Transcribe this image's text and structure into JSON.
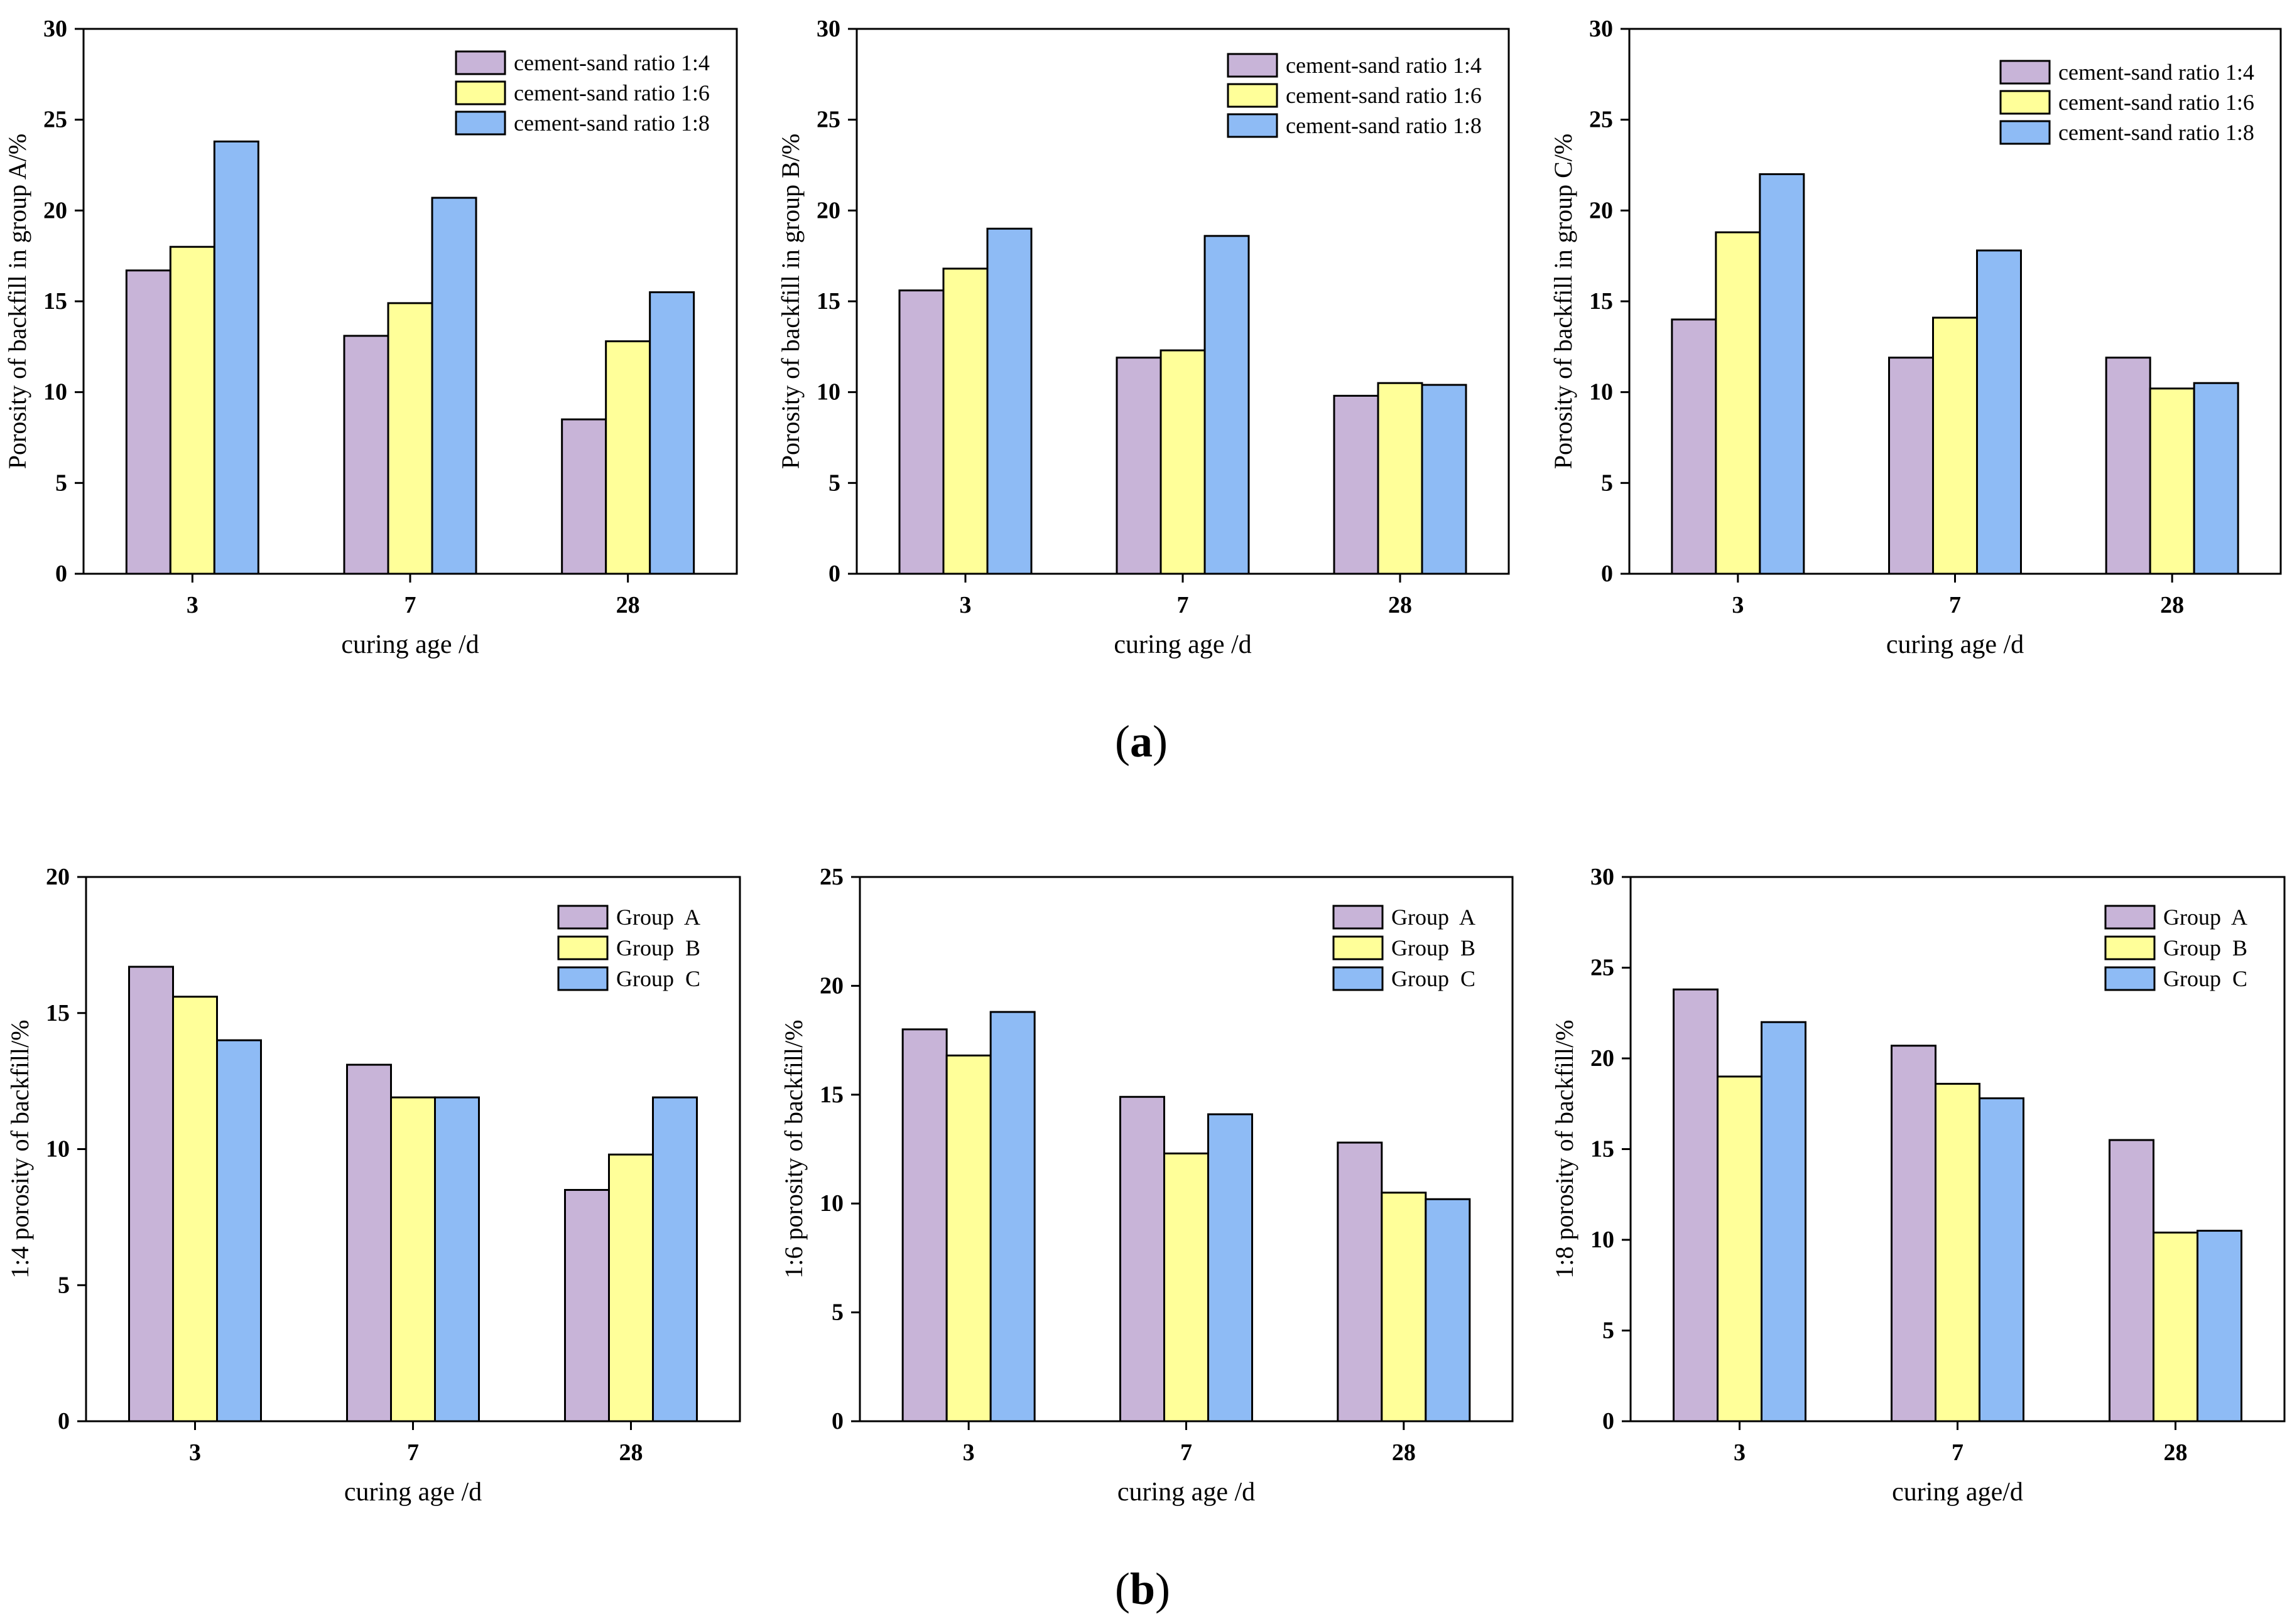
{
  "panel_labels": {
    "a": "a",
    "b": "b"
  },
  "colors": {
    "purple": "#c8b4d8",
    "yellow": "#ffff99",
    "blue": "#8ebbf5"
  },
  "chart_data": [
    {
      "type": "bar",
      "title": "",
      "xlabel": "curing age /d",
      "ylabel": "Porosity of backfill in group A/%",
      "categories": [
        "3",
        "7",
        "28"
      ],
      "ylim": [
        0,
        30
      ],
      "yticks": [
        "0",
        "5",
        "10",
        "15",
        "20",
        "25",
        "30"
      ],
      "series": [
        {
          "name": "cement-sand ratio 1:4",
          "color": "#c8b4d8",
          "values": [
            16.7,
            13.1,
            8.5
          ]
        },
        {
          "name": "cement-sand ratio 1:6",
          "color": "#ffff99",
          "values": [
            18.0,
            14.9,
            12.8
          ]
        },
        {
          "name": "cement-sand ratio 1:8",
          "color": "#8ebbf5",
          "values": [
            23.8,
            20.7,
            15.5
          ]
        }
      ],
      "legend": "top-right",
      "grid": false
    },
    {
      "type": "bar",
      "title": "",
      "xlabel": "curing age /d",
      "ylabel": "Porosity of backfill in group B/%",
      "categories": [
        "3",
        "7",
        "28"
      ],
      "ylim": [
        0,
        30
      ],
      "yticks": [
        "0",
        "5",
        "10",
        "15",
        "20",
        "25",
        "30"
      ],
      "series": [
        {
          "name": "cement-sand ratio 1:4",
          "color": "#c8b4d8",
          "values": [
            15.6,
            11.9,
            9.8
          ]
        },
        {
          "name": "cement-sand ratio 1:6",
          "color": "#ffff99",
          "values": [
            16.8,
            12.3,
            10.5
          ]
        },
        {
          "name": "cement-sand ratio 1:8",
          "color": "#8ebbf5",
          "values": [
            19.0,
            18.6,
            10.4
          ]
        }
      ],
      "legend": "top-right",
      "grid": false
    },
    {
      "type": "bar",
      "title": "",
      "xlabel": "curing age /d",
      "ylabel": "Porosity of backfill in group C/%",
      "categories": [
        "3",
        "7",
        "28"
      ],
      "ylim": [
        0,
        30
      ],
      "yticks": [
        "0",
        "5",
        "10",
        "15",
        "20",
        "25",
        "30"
      ],
      "series": [
        {
          "name": "cement-sand ratio 1:4",
          "color": "#c8b4d8",
          "values": [
            14.0,
            11.9,
            11.9
          ]
        },
        {
          "name": "cement-sand ratio 1:6",
          "color": "#ffff99",
          "values": [
            18.8,
            14.1,
            10.2
          ]
        },
        {
          "name": "cement-sand ratio 1:8",
          "color": "#8ebbf5",
          "values": [
            22.0,
            17.8,
            10.5
          ]
        }
      ],
      "legend": "top-right",
      "grid": false
    },
    {
      "type": "bar",
      "title": "",
      "xlabel": "curing age /d",
      "ylabel": "1:4 porosity of backfill/%",
      "categories": [
        "3",
        "7",
        "28"
      ],
      "ylim": [
        0,
        20
      ],
      "yticks": [
        "0",
        "5",
        "10",
        "15",
        "20"
      ],
      "series": [
        {
          "name": "Group  A",
          "color": "#c8b4d8",
          "values": [
            16.7,
            13.1,
            8.5
          ]
        },
        {
          "name": "Group  B",
          "color": "#ffff99",
          "values": [
            15.6,
            11.9,
            9.8
          ]
        },
        {
          "name": "Group  C",
          "color": "#8ebbf5",
          "values": [
            14.0,
            11.9,
            11.9
          ]
        }
      ],
      "legend": "top-right",
      "grid": false
    },
    {
      "type": "bar",
      "title": "",
      "xlabel": "curing age /d",
      "ylabel": "1:6 porosity of backfill/%",
      "categories": [
        "3",
        "7",
        "28"
      ],
      "ylim": [
        0,
        25
      ],
      "yticks": [
        "0",
        "5",
        "10",
        "15",
        "20",
        "25"
      ],
      "series": [
        {
          "name": "Group  A",
          "color": "#c8b4d8",
          "values": [
            18.0,
            14.9,
            12.8
          ]
        },
        {
          "name": "Group  B",
          "color": "#ffff99",
          "values": [
            16.8,
            12.3,
            10.5
          ]
        },
        {
          "name": "Group  C",
          "color": "#8ebbf5",
          "values": [
            18.8,
            14.1,
            10.2
          ]
        }
      ],
      "legend": "top-right",
      "grid": false
    },
    {
      "type": "bar",
      "title": "",
      "xlabel": "curing age/d",
      "ylabel": "1:8 porosity of backfill/%",
      "categories": [
        "3",
        "7",
        "28"
      ],
      "ylim": [
        0,
        30
      ],
      "yticks": [
        "0",
        "5",
        "10",
        "15",
        "20",
        "25",
        "30"
      ],
      "series": [
        {
          "name": "Group  A",
          "color": "#c8b4d8",
          "values": [
            23.8,
            20.7,
            15.5
          ]
        },
        {
          "name": "Group  B",
          "color": "#ffff99",
          "values": [
            19.0,
            18.6,
            10.4
          ]
        },
        {
          "name": "Group  C",
          "color": "#8ebbf5",
          "values": [
            22.0,
            17.8,
            10.5
          ]
        }
      ],
      "legend": "top-right",
      "grid": false
    }
  ]
}
